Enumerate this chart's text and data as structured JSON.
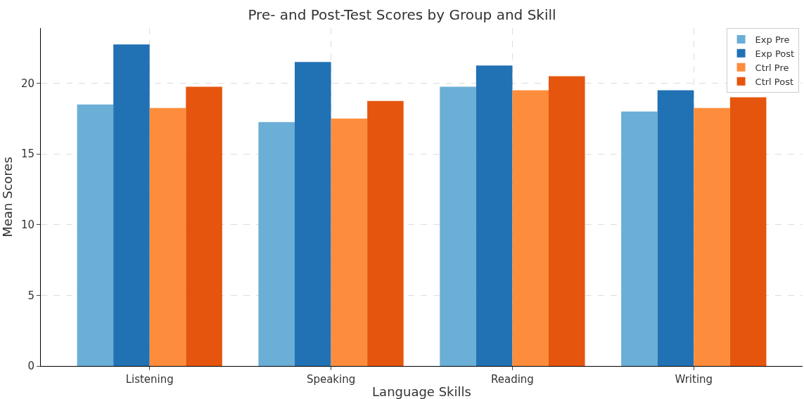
{
  "chart_data": {
    "type": "bar",
    "title": "Pre- and Post-Test Scores by Group and Skill",
    "xlabel": "Language Skills",
    "ylabel": "Mean Scores",
    "categories": [
      "Listening",
      "Speaking",
      "Reading",
      "Writing"
    ],
    "series": [
      {
        "name": "Exp Pre",
        "color": "#6baed6",
        "values": [
          18.5,
          17.25,
          19.75,
          18.0
        ]
      },
      {
        "name": "Exp Post",
        "color": "#2171b5",
        "values": [
          22.75,
          21.5,
          21.25,
          19.5
        ]
      },
      {
        "name": "Ctrl Pre",
        "color": "#fd8d3c",
        "values": [
          18.25,
          17.5,
          19.5,
          18.25
        ]
      },
      {
        "name": "Ctrl Post",
        "color": "#e6550d",
        "values": [
          19.75,
          18.75,
          20.5,
          19.0
        ]
      }
    ],
    "ylim": [
      0,
      23.9
    ],
    "yticks": [
      0,
      5,
      10,
      15,
      20
    ],
    "grid": true,
    "legend": "top right"
  }
}
